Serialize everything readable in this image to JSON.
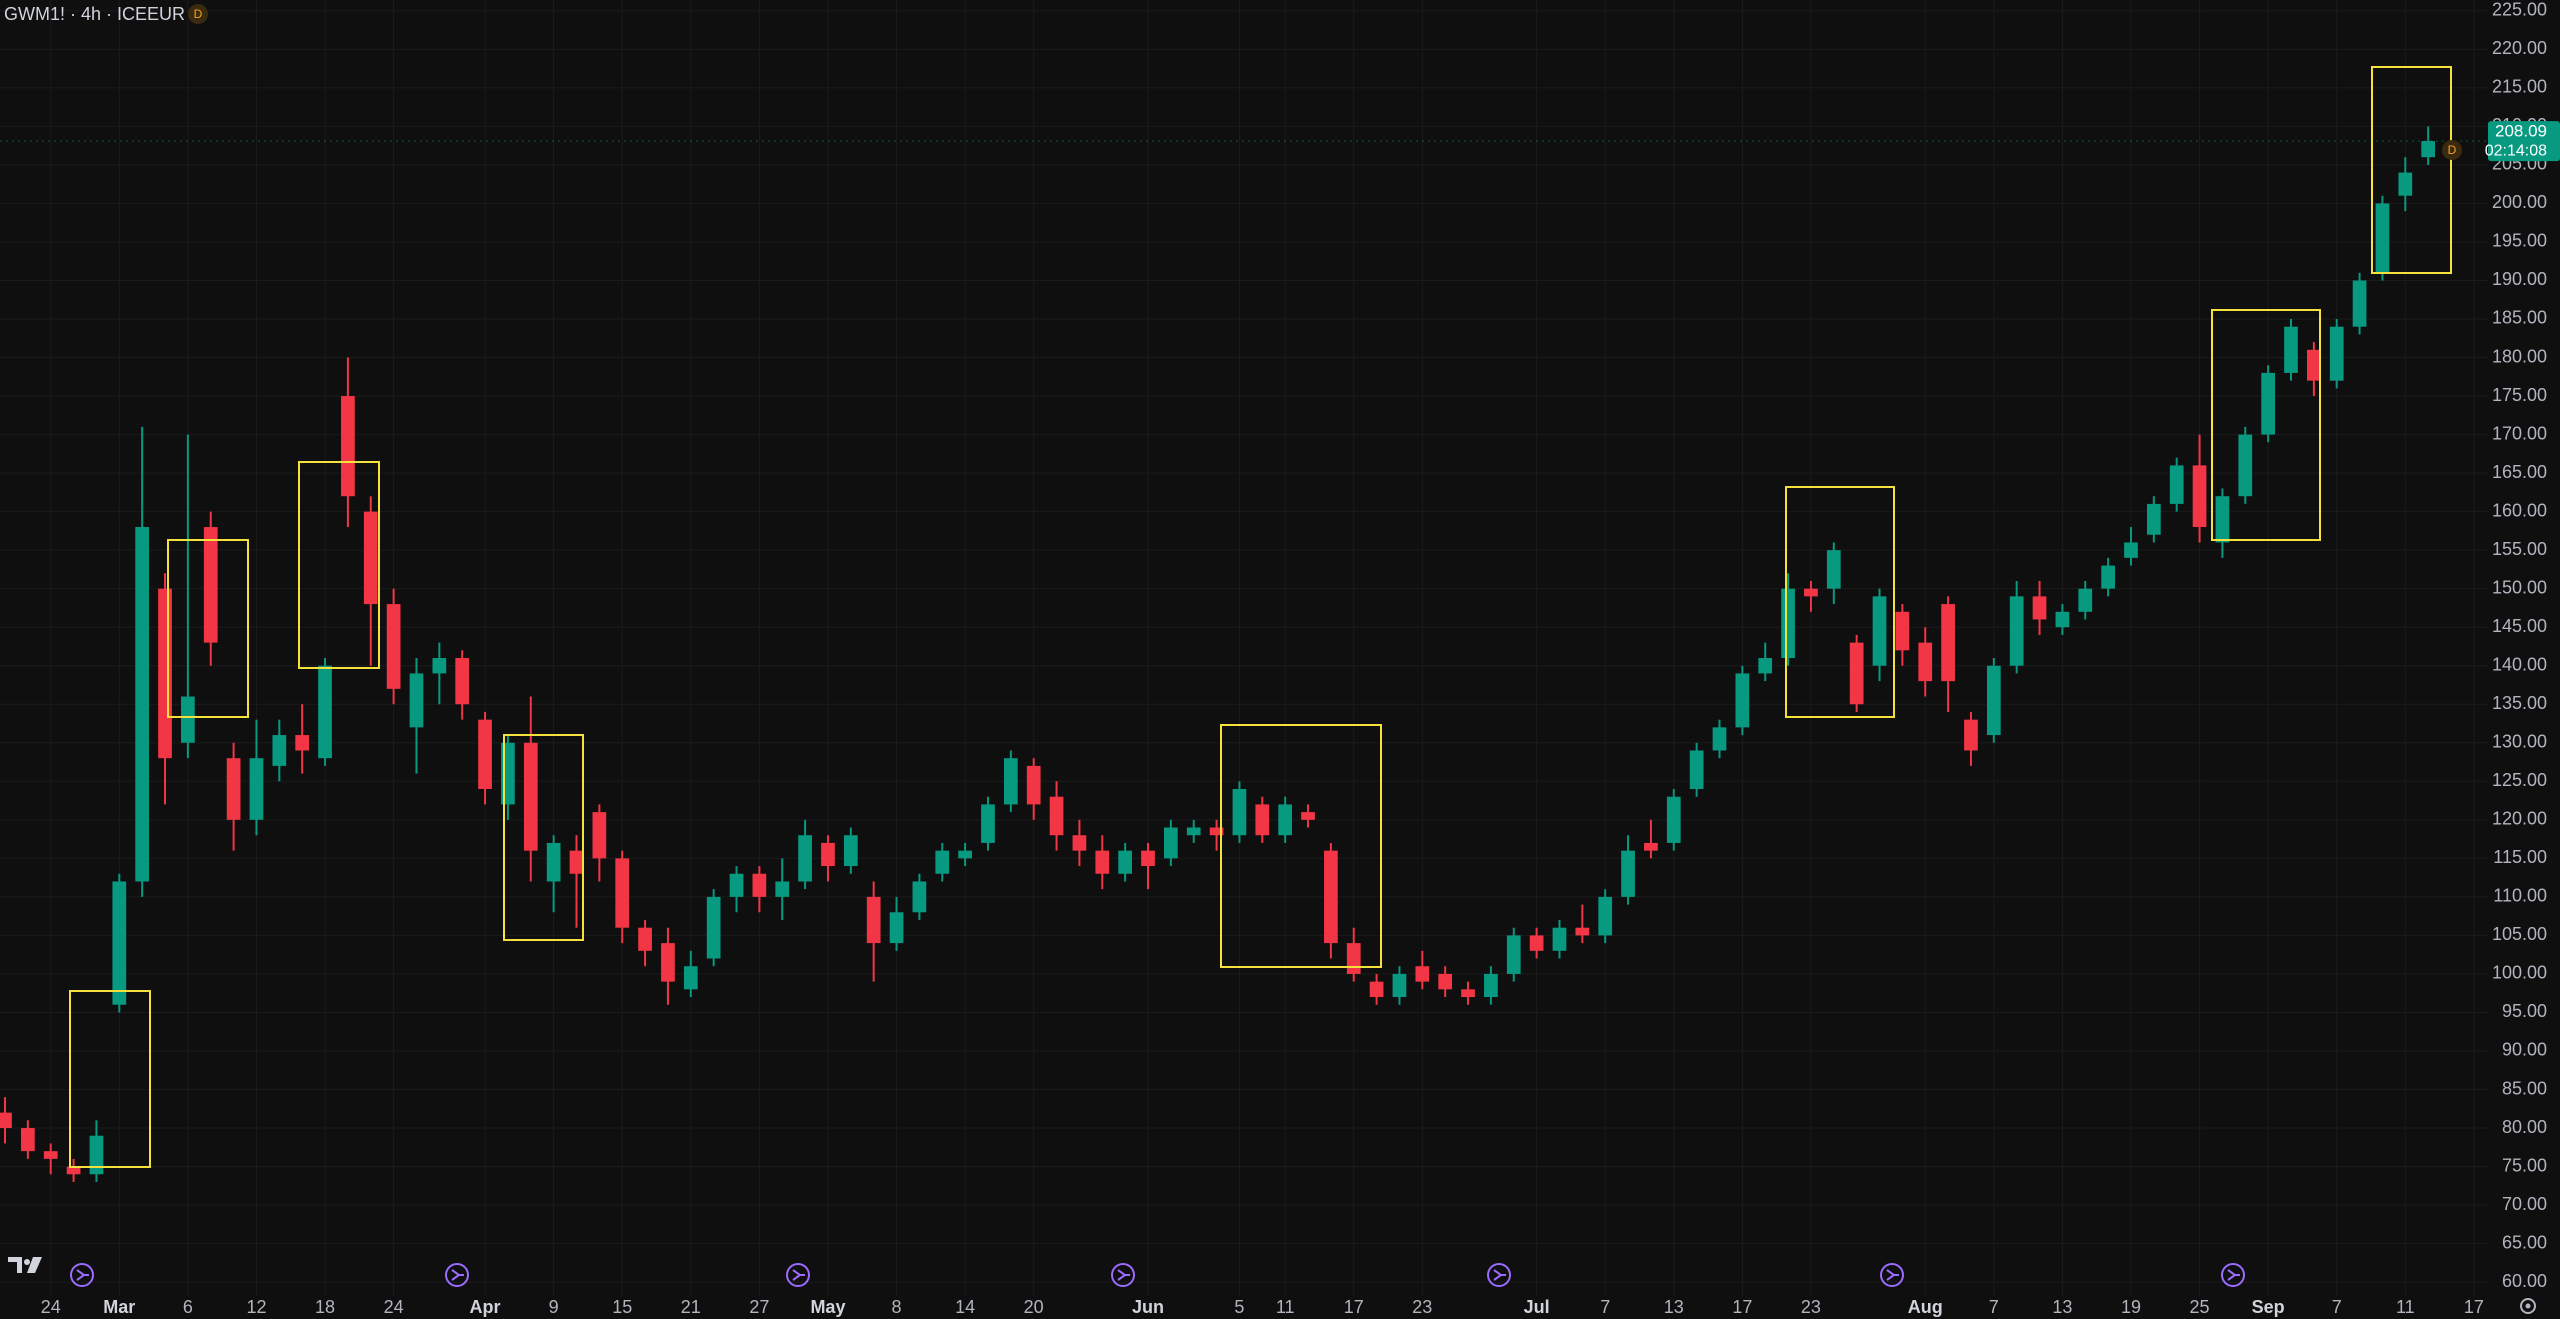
{
  "chart_data": {
    "type": "candlestick",
    "title": "GWM1! · 4h · ICEEUR",
    "badge": "D",
    "categories": [
      null,
      null,
      "24",
      null,
      null,
      "Mar",
      null,
      null,
      "6",
      null,
      null,
      "12",
      null,
      null,
      "18",
      null,
      null,
      "24",
      null,
      null,
      null,
      "Apr",
      null,
      null,
      "9",
      null,
      null,
      "15",
      null,
      null,
      "21",
      null,
      null,
      "27",
      null,
      null,
      "May",
      null,
      null,
      "8",
      null,
      null,
      "14",
      null,
      null,
      "20",
      null,
      null,
      null,
      null,
      "Jun",
      null,
      null,
      null,
      "5",
      null,
      "11",
      null,
      null,
      "17",
      null,
      null,
      "23",
      null,
      null,
      null,
      null,
      "Jul",
      null,
      null,
      "7",
      null,
      null,
      "13",
      null,
      null,
      "17",
      null,
      null,
      "23",
      null,
      null,
      null,
      null,
      "Aug",
      null,
      null,
      "7",
      null,
      null,
      "13",
      null,
      null,
      "19",
      null,
      null,
      "25",
      null,
      null,
      "Sep",
      null,
      null,
      "7",
      null,
      null,
      "11",
      null,
      null,
      "17"
    ],
    "open": [
      82,
      80,
      77,
      75,
      74,
      96,
      112,
      150,
      130,
      158,
      128,
      120,
      127,
      131,
      128,
      175,
      160,
      148,
      132,
      139,
      141,
      133,
      122,
      130,
      112,
      116,
      121,
      115,
      106,
      104,
      98,
      102,
      110,
      113,
      110,
      112,
      117,
      114,
      110,
      104,
      108,
      113,
      115,
      117,
      122,
      127,
      123,
      118,
      116,
      113,
      116,
      115,
      118,
      119,
      118,
      122,
      118,
      121,
      116,
      104,
      99,
      97,
      101,
      100,
      98,
      97,
      100,
      105,
      103,
      106,
      105,
      110,
      117,
      117,
      124,
      129,
      132,
      139,
      141,
      150,
      150,
      143,
      140,
      147,
      143,
      148,
      133,
      131,
      140,
      149,
      145,
      147,
      150,
      154,
      157,
      161,
      166,
      156,
      162,
      170,
      178,
      181,
      177,
      184,
      191,
      201,
      206,
      null,
      null
    ],
    "high": [
      84,
      81,
      78,
      76,
      81,
      113,
      171,
      152,
      170,
      160,
      130,
      133,
      133,
      135,
      141,
      180,
      162,
      150,
      141,
      143,
      142,
      134,
      131,
      136,
      118,
      118,
      122,
      116,
      107,
      106,
      103,
      111,
      114,
      114,
      115,
      120,
      118,
      119,
      112,
      110,
      113,
      117,
      117,
      123,
      129,
      128,
      125,
      120,
      118,
      117,
      117,
      120,
      120,
      120,
      125,
      123,
      123,
      122,
      117,
      106,
      100,
      101,
      103,
      101,
      99,
      101,
      106,
      106,
      107,
      109,
      111,
      118,
      120,
      124,
      130,
      133,
      140,
      143,
      152,
      151,
      156,
      144,
      150,
      148,
      145,
      149,
      134,
      141,
      151,
      151,
      148,
      151,
      154,
      158,
      162,
      167,
      170,
      163,
      171,
      179,
      185,
      182,
      185,
      191,
      201,
      206,
      210,
      null,
      null
    ],
    "low": [
      78,
      76,
      74,
      73,
      73,
      95,
      110,
      122,
      128,
      140,
      116,
      118,
      125,
      126,
      127,
      158,
      140,
      135,
      126,
      135,
      133,
      122,
      120,
      112,
      108,
      106,
      112,
      104,
      101,
      96,
      97,
      101,
      108,
      108,
      107,
      111,
      112,
      113,
      99,
      103,
      107,
      112,
      114,
      116,
      121,
      120,
      116,
      114,
      111,
      112,
      111,
      114,
      117,
      116,
      117,
      117,
      117,
      119,
      102,
      99,
      96,
      96,
      98,
      97,
      96,
      96,
      99,
      102,
      102,
      104,
      104,
      109,
      115,
      116,
      123,
      128,
      131,
      138,
      140,
      147,
      148,
      134,
      138,
      140,
      136,
      134,
      127,
      130,
      139,
      144,
      144,
      146,
      149,
      153,
      156,
      160,
      156,
      154,
      161,
      169,
      177,
      175,
      176,
      183,
      190,
      199,
      205,
      null,
      null
    ],
    "close": [
      80,
      77,
      76,
      74,
      79,
      112,
      158,
      128,
      136,
      143,
      120,
      128,
      131,
      129,
      140,
      162,
      148,
      137,
      139,
      141,
      135,
      124,
      130,
      116,
      117,
      113,
      115,
      106,
      103,
      99,
      101,
      110,
      113,
      110,
      112,
      118,
      114,
      118,
      104,
      108,
      112,
      116,
      116,
      122,
      128,
      122,
      118,
      116,
      113,
      116,
      114,
      119,
      119,
      118,
      124,
      118,
      122,
      120,
      104,
      100,
      97,
      100,
      99,
      98,
      97,
      100,
      105,
      103,
      106,
      105,
      110,
      116,
      116,
      123,
      129,
      132,
      139,
      141,
      150,
      149,
      155,
      135,
      149,
      142,
      138,
      138,
      129,
      140,
      149,
      146,
      147,
      150,
      153,
      156,
      161,
      166,
      158,
      162,
      170,
      178,
      184,
      177,
      184,
      190,
      200,
      204,
      208.09,
      null,
      null
    ],
    "up_color": "#089981",
    "down_color": "#f23645",
    "ylim": [
      58.2,
      226.4
    ],
    "yticks": [
      {
        "value": 60,
        "label": "60.00"
      },
      {
        "value": 65,
        "label": "65.00"
      },
      {
        "value": 70,
        "label": "70.00"
      },
      {
        "value": 75,
        "label": "75.00"
      },
      {
        "value": 80,
        "label": "80.00"
      },
      {
        "value": 85,
        "label": "85.00"
      },
      {
        "value": 90,
        "label": "90.00"
      },
      {
        "value": 95,
        "label": "95.00"
      },
      {
        "value": 100,
        "label": "100.00"
      },
      {
        "value": 105,
        "label": "105.00"
      },
      {
        "value": 110,
        "label": "110.00"
      },
      {
        "value": 115,
        "label": "115.00"
      },
      {
        "value": 120,
        "label": "120.00"
      },
      {
        "value": 125,
        "label": "125.00"
      },
      {
        "value": 130,
        "label": "130.00"
      },
      {
        "value": 135,
        "label": "135.00"
      },
      {
        "value": 140,
        "label": "140.00"
      },
      {
        "value": 145,
        "label": "145.00"
      },
      {
        "value": 150,
        "label": "150.00"
      },
      {
        "value": 155,
        "label": "155.00"
      },
      {
        "value": 160,
        "label": "160.00"
      },
      {
        "value": 165,
        "label": "165.00"
      },
      {
        "value": 170,
        "label": "170.00"
      },
      {
        "value": 175,
        "label": "175.00"
      },
      {
        "value": 180,
        "label": "180.00"
      },
      {
        "value": 185,
        "label": "185.00"
      },
      {
        "value": 190,
        "label": "190.00"
      },
      {
        "value": 195,
        "label": "195.00"
      },
      {
        "value": 200,
        "label": "200.00"
      },
      {
        "value": 205,
        "label": "205.00"
      },
      {
        "value": 210,
        "label": "210.00"
      },
      {
        "value": 215,
        "label": "215.00"
      },
      {
        "value": 220,
        "label": "220.00"
      },
      {
        "value": 225,
        "label": "225.00"
      }
    ],
    "grid": true,
    "last_price": 208.09,
    "countdown": "02:14:08"
  }
}
